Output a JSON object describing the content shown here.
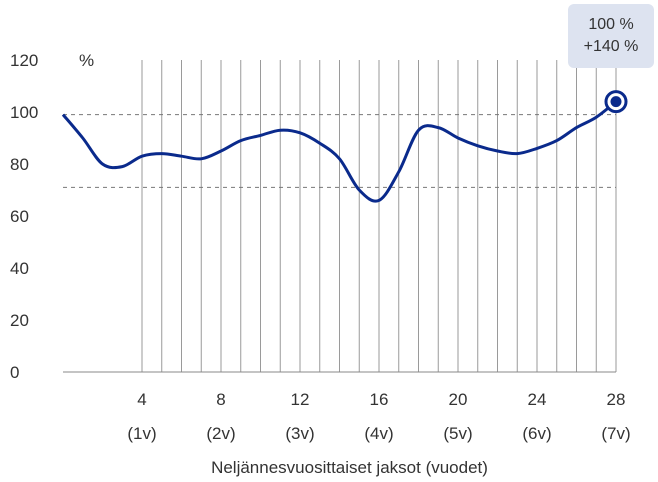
{
  "chart_data": {
    "type": "line",
    "xlabel": "Neljännesvuosittaiset jaksot (vuodet)",
    "ylabel": "%",
    "ylim": [
      0,
      120
    ],
    "xlim": [
      0,
      28
    ],
    "yticks": [
      0,
      20,
      40,
      60,
      80,
      100,
      120
    ],
    "xticks": [
      {
        "value": 4,
        "label": "4",
        "sublabel": "(1v)"
      },
      {
        "value": 8,
        "label": "8",
        "sublabel": "(2v)"
      },
      {
        "value": 12,
        "label": "12",
        "sublabel": "(3v)"
      },
      {
        "value": 16,
        "label": "16",
        "sublabel": "(4v)"
      },
      {
        "value": 20,
        "label": "20",
        "sublabel": "(5v)"
      },
      {
        "value": 24,
        "label": "24",
        "sublabel": "(6v)"
      },
      {
        "value": 28,
        "label": "28",
        "sublabel": "(7v)"
      }
    ],
    "vertical_gridlines": [
      4,
      5,
      6,
      7,
      8,
      9,
      10,
      11,
      12,
      13,
      14,
      15,
      16,
      17,
      18,
      19,
      20,
      21,
      22,
      23,
      24,
      25,
      26,
      27,
      28
    ],
    "reference_lines": [
      99,
      71
    ],
    "grid": true,
    "series": [
      {
        "color": "#0a2a8c",
        "x": [
          0,
          1,
          2,
          3,
          4,
          5,
          6,
          7,
          8,
          9,
          10,
          11,
          12,
          13,
          14,
          15,
          16,
          17,
          18,
          19,
          20,
          21,
          22,
          23,
          24,
          25,
          26,
          27,
          28
        ],
        "y": [
          99,
          90,
          80,
          79,
          83,
          84,
          83,
          82,
          85,
          89,
          91,
          93,
          92,
          88,
          82,
          70,
          66,
          77,
          93,
          94,
          90,
          87,
          85,
          84,
          86,
          89,
          94,
          98,
          104
        ]
      }
    ],
    "highlight_point": {
      "x": 28,
      "y": 104
    },
    "annotation": {
      "line1": "100 %",
      "line2": "+140 %"
    }
  }
}
